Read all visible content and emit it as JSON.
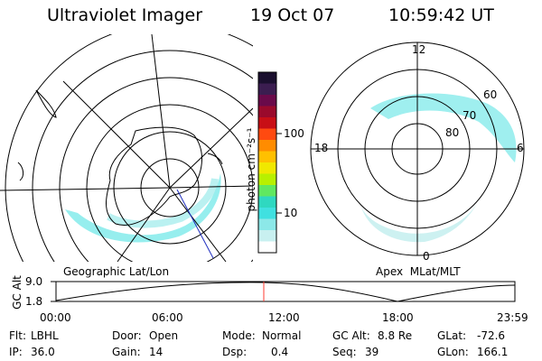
{
  "header": {
    "title": "Ultraviolet Imager",
    "date": "19 Oct 07",
    "time": "10:59:42 UT"
  },
  "geo_panel": {
    "caption": "Geographic Lat/Lon"
  },
  "apex_panel": {
    "caption": "Apex  MLat/MLT",
    "mlt_labels": {
      "top": "12",
      "left": "18",
      "right": "6",
      "bottom": "0"
    },
    "lat_labels": [
      "60",
      "70",
      "80"
    ]
  },
  "colorbar": {
    "unit": "photon cm⁻²s⁻¹",
    "tick_labels": [
      "100",
      "10"
    ],
    "colors": [
      "#1a0f2e",
      "#3b1d50",
      "#6a0a4a",
      "#9a0a2c",
      "#c80f16",
      "#ff4a10",
      "#ff8c00",
      "#ffc000",
      "#f0e800",
      "#b8f000",
      "#60e860",
      "#2fd8c0",
      "#40e0e0",
      "#8ce8e8",
      "#c8f0f0",
      "#ffffff"
    ]
  },
  "timeline": {
    "axis_label": "GC Alt",
    "y_ticks": [
      "9.0",
      "1.8"
    ],
    "x_ticks": [
      "00:00",
      "06:00",
      "12:00",
      "18:00",
      "23:59"
    ],
    "marker_color": "#ff3b30",
    "marker_value": "10:59:42"
  },
  "status": [
    {
      "label": "Flt:",
      "value": "LBHL"
    },
    {
      "label": "Door:",
      "value": "Open"
    },
    {
      "label": "Mode:",
      "value": "Normal"
    },
    {
      "label": "GC Alt:",
      "value": "8.8 Re"
    },
    {
      "label": "GLat:",
      "value": "-72.6"
    },
    {
      "label": "IP:",
      "value": "36.0"
    },
    {
      "label": "Gain:",
      "value": "14"
    },
    {
      "label": "Dsp:",
      "value": "0.4"
    },
    {
      "label": "Seq:",
      "value": "39"
    },
    {
      "label": "GLon:",
      "value": "166.1"
    }
  ],
  "colors": {
    "aurora": "#40e0e0",
    "aurora_light": "#c8f0f0"
  }
}
